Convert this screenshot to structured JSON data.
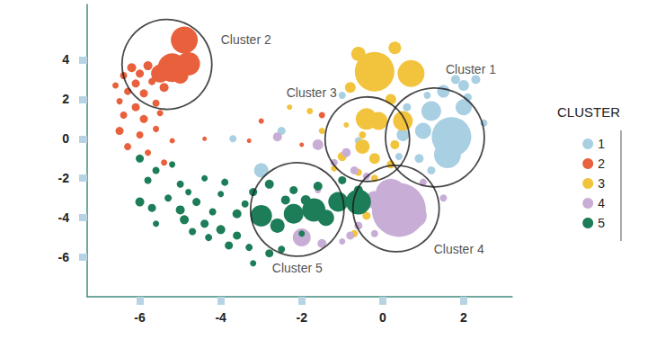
{
  "chart_data": {
    "type": "scatter",
    "legend": "right",
    "legend_title": "CLUSTER",
    "grid": false,
    "xlim": [
      -7.3,
      3.2
    ],
    "ylim": [
      -8,
      6.8
    ],
    "xticks": [
      -6,
      -4,
      -2,
      0,
      2
    ],
    "yticks": [
      -6,
      -4,
      -2,
      0,
      2,
      4
    ],
    "series": [
      {
        "name": "1",
        "color": "#a9cfe3",
        "x": [
          1.7,
          1.6,
          1.2,
          1.0,
          0.5,
          2.0,
          1.5,
          2.0,
          1.8,
          2.3,
          2.1,
          0.9,
          0.4,
          1.2,
          0.6,
          1.1,
          2.5,
          -3.0,
          -3.7,
          -2.5,
          -1.0,
          -0.6
        ],
        "y": [
          0.1,
          -0.8,
          1.4,
          0.4,
          0.2,
          1.6,
          2.4,
          2.7,
          3.0,
          3.0,
          2.1,
          -1.0,
          -0.9,
          -1.6,
          1.6,
          2.2,
          0.8,
          -1.6,
          0.0,
          0.4,
          2.2,
          -0.1
        ],
        "sizes": [
          44,
          30,
          22,
          18,
          14,
          18,
          14,
          12,
          10,
          10,
          9,
          10,
          8,
          9,
          9,
          8,
          8,
          16,
          8,
          9,
          8,
          8
        ]
      },
      {
        "name": "2",
        "color": "#e8603c",
        "x": [
          -4.9,
          -5.2,
          -4.8,
          -5.5,
          -5.0,
          -6.2,
          -6.0,
          -5.8,
          -6.4,
          -6.1,
          -5.7,
          -5.4,
          -6.3,
          -5.9,
          -6.5,
          -6.1,
          -5.6,
          -6.4,
          -5.9,
          -5.5,
          -6.5,
          -6.0,
          -5.6,
          -6.3,
          -5.8,
          -5.2,
          -5.4,
          -3.0,
          -4.4,
          -3.3,
          -2.0,
          -1.5,
          -6.6
        ],
        "y": [
          5.0,
          3.6,
          3.8,
          3.3,
          3.2,
          3.6,
          3.3,
          3.7,
          3.2,
          2.8,
          2.9,
          2.6,
          2.4,
          2.3,
          1.9,
          1.6,
          1.8,
          1.2,
          1.0,
          1.3,
          0.4,
          0.2,
          0.5,
          -0.4,
          -0.7,
          -0.1,
          -1.2,
          0.9,
          0.0,
          -0.1,
          -0.3,
          1.2,
          2.7
        ],
        "sizes": [
          30,
          32,
          26,
          20,
          18,
          10,
          9,
          10,
          8,
          9,
          8,
          10,
          8,
          9,
          7,
          9,
          8,
          8,
          9,
          7,
          9,
          8,
          7,
          8,
          7,
          6,
          7,
          6,
          5,
          5,
          5,
          7,
          7
        ]
      },
      {
        "name": "3",
        "color": "#f2c43d",
        "x": [
          -0.2,
          0.7,
          -0.4,
          -0.1,
          0.5,
          -0.6,
          0.3,
          -0.8,
          0.2,
          -0.5,
          -0.2,
          -1.8,
          -1.5,
          -1.0,
          -0.6,
          -0.2,
          0.2,
          -0.5,
          0.3,
          -2.3,
          -1.2,
          -0.9,
          -0.4,
          -0.7
        ],
        "y": [
          3.4,
          3.3,
          1.0,
          0.9,
          0.9,
          4.3,
          4.6,
          2.6,
          2.0,
          -0.4,
          -1.0,
          1.4,
          0.4,
          -0.9,
          -1.7,
          -2.0,
          -1.3,
          0.2,
          -0.3,
          1.6,
          -1.5,
          0.7,
          -3.9,
          -4.8
        ],
        "sizes": [
          44,
          30,
          24,
          20,
          22,
          16,
          14,
          12,
          12,
          16,
          12,
          7,
          7,
          10,
          8,
          8,
          9,
          8,
          10,
          6,
          7,
          6,
          9,
          8
        ]
      },
      {
        "name": "4",
        "color": "#c8aed6",
        "x": [
          0.4,
          0.2,
          -0.2,
          0.8,
          -1.6,
          -0.9,
          -2.6,
          -1.2,
          -0.7,
          -0.4,
          -1.6,
          -0.6,
          -0.8,
          -1.0,
          -2.0,
          -1.5,
          1.0,
          1.5,
          -0.2
        ],
        "y": [
          -3.6,
          -2.8,
          -3.1,
          -3.9,
          -0.3,
          -0.7,
          0.1,
          -1.2,
          -1.6,
          -1.9,
          -2.6,
          -4.4,
          -4.9,
          -5.2,
          -5.0,
          -5.3,
          -2.2,
          -3.0,
          -4.8
        ],
        "sizes": [
          60,
          34,
          20,
          26,
          12,
          10,
          10,
          8,
          9,
          8,
          7,
          9,
          9,
          7,
          20,
          10,
          8,
          8,
          8
        ]
      },
      {
        "name": "5",
        "color": "#1d7d58",
        "x": [
          -3.0,
          -2.2,
          -1.7,
          -1.1,
          -0.6,
          -2.6,
          -1.4,
          -6.0,
          -5.7,
          -5.3,
          -5.0,
          -4.6,
          -4.9,
          -4.4,
          -4.0,
          -3.6,
          -4.3,
          -3.8,
          -3.3,
          -2.8,
          -3.2,
          -2.5,
          -4.7,
          -5.6,
          -4.2,
          -3.6,
          -3.9,
          -4.4,
          -5.0,
          -5.6,
          -6.0,
          -5.8,
          -5.2,
          -3.2,
          -2.8,
          -2.2,
          -1.6,
          -1.0,
          -0.6,
          -1.9,
          -2.4,
          -3.4,
          -4.0,
          -4.8,
          -2.0
        ],
        "y": [
          -3.9,
          -3.8,
          -3.6,
          -3.2,
          -3.2,
          -4.4,
          -4.0,
          -3.2,
          -3.5,
          -3.0,
          -3.6,
          -3.2,
          -4.1,
          -4.3,
          -4.6,
          -4.9,
          -5.0,
          -5.4,
          -5.5,
          -5.8,
          -6.3,
          -5.6,
          -4.7,
          -4.3,
          -3.7,
          -3.8,
          -2.2,
          -2.0,
          -2.3,
          -1.6,
          -1.0,
          -2.1,
          -1.3,
          -2.7,
          -2.3,
          -2.6,
          -2.4,
          -2.1,
          -2.6,
          -3.1,
          -3.1,
          -3.3,
          -2.8,
          -2.7,
          -4.8
        ],
        "sizes": [
          24,
          22,
          26,
          22,
          28,
          16,
          18,
          10,
          9,
          8,
          10,
          9,
          10,
          9,
          10,
          9,
          8,
          9,
          8,
          9,
          7,
          8,
          8,
          7,
          8,
          10,
          8,
          7,
          8,
          8,
          9,
          8,
          7,
          9,
          10,
          9,
          10,
          9,
          10,
          11,
          10,
          8,
          7,
          7,
          7
        ]
      }
    ],
    "annotations": [
      {
        "text": "Cluster 1",
        "x": 1.29,
        "y": 0.07
      },
      {
        "text": "Cluster 2",
        "x": -5.33,
        "y": 3.77
      },
      {
        "text": "Cluster 3",
        "x": -0.38,
        "y": -0.02
      },
      {
        "text": "Cluster 4",
        "x": 0.33,
        "y": -3.53
      },
      {
        "text": "Cluster 5",
        "x": -2.11,
        "y": -3.58
      }
    ]
  }
}
